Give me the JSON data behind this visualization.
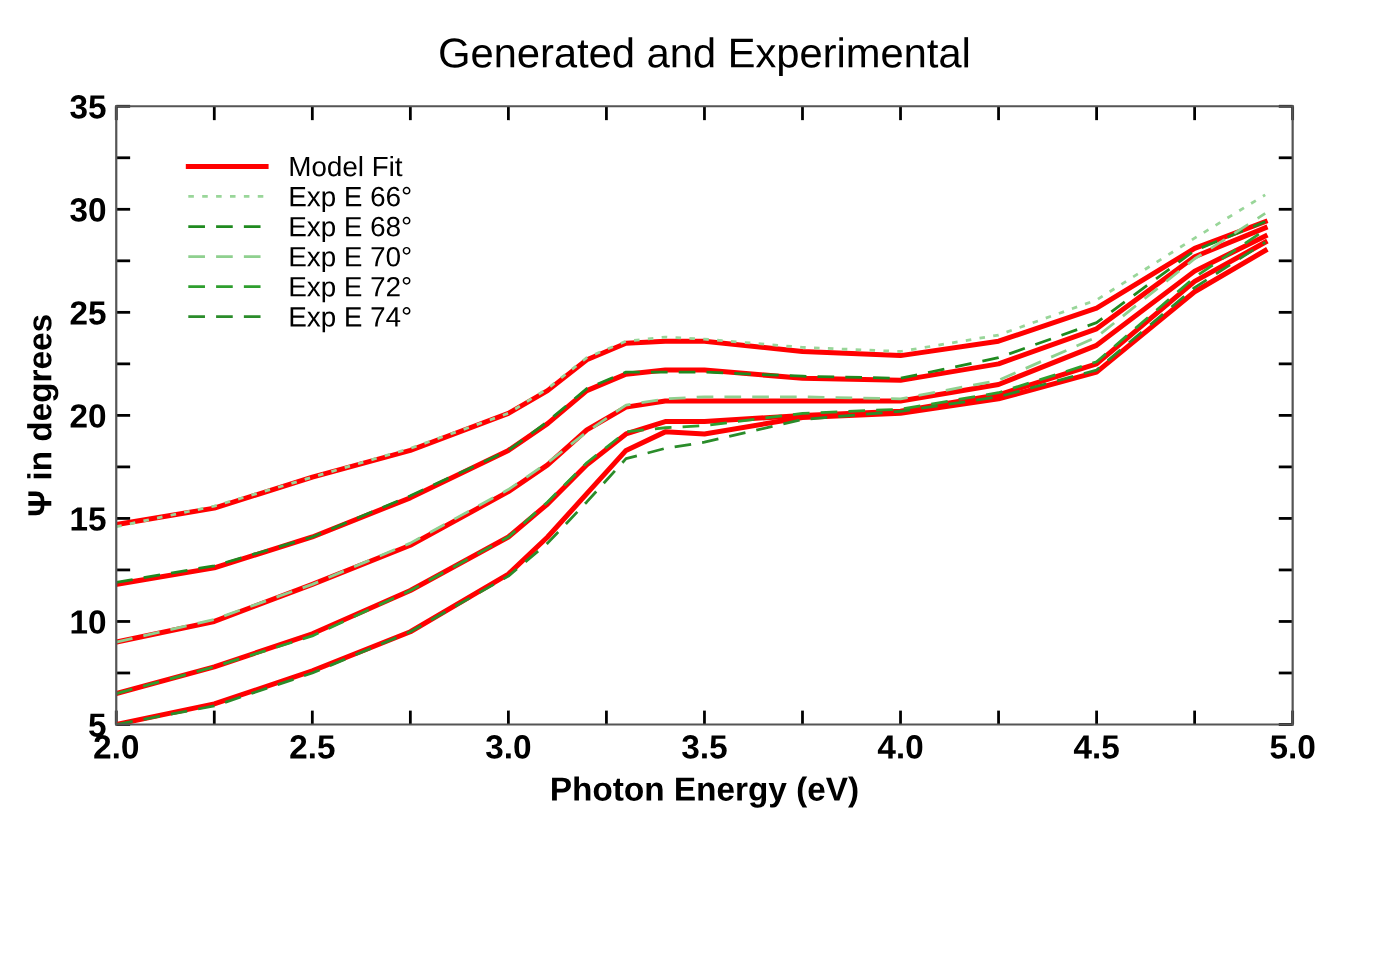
{
  "chart_data": {
    "type": "line",
    "title": "Generated and Experimental",
    "xlabel": "Photon Energy (eV)",
    "ylabel": "Ψ in degrees",
    "x": [
      2.0,
      2.25,
      2.5,
      2.75,
      3.0,
      3.1,
      3.2,
      3.3,
      3.4,
      3.5,
      3.75,
      4.0,
      4.25,
      4.5,
      4.75,
      4.93
    ],
    "xlim": [
      2.0,
      5.0
    ],
    "ylim": [
      5,
      35
    ],
    "xticks": [
      {
        "value": 2.0,
        "label": "2.0"
      },
      {
        "value": 2.25,
        "label": null
      },
      {
        "value": 2.5,
        "label": "2.5"
      },
      {
        "value": 2.75,
        "label": null
      },
      {
        "value": 3.0,
        "label": "3.0"
      },
      {
        "value": 3.25,
        "label": null
      },
      {
        "value": 3.5,
        "label": "3.5"
      },
      {
        "value": 3.75,
        "label": null
      },
      {
        "value": 4.0,
        "label": "4.0"
      },
      {
        "value": 4.25,
        "label": null
      },
      {
        "value": 4.5,
        "label": "4.5"
      },
      {
        "value": 4.75,
        "label": null
      },
      {
        "value": 5.0,
        "label": "5.0"
      }
    ],
    "yticks": [
      5,
      {
        "value": 7.5,
        "label": null
      },
      10,
      {
        "value": 12.5,
        "label": null
      },
      15,
      {
        "value": 17.5,
        "label": null
      },
      20,
      {
        "value": 22.5,
        "label": null
      },
      25,
      {
        "value": 27.5,
        "label": null
      },
      30,
      {
        "value": 32.5,
        "label": null
      },
      35
    ],
    "grid": false,
    "legend": "top left",
    "marker": "none",
    "series": [
      {
        "name": "Model Fit",
        "color": "#ff0000",
        "line_style": "solid",
        "values": [
          14.7,
          15.5,
          17.0,
          18.3,
          20.1,
          21.2,
          22.7,
          23.5,
          23.6,
          23.6,
          23.1,
          22.9,
          23.6,
          25.2,
          28.1,
          29.4
        ]
      },
      {
        "color": "#ff0000",
        "line_style": "solid",
        "values": [
          11.8,
          12.6,
          14.1,
          16.0,
          18.3,
          19.6,
          21.2,
          22.0,
          22.2,
          22.2,
          21.8,
          21.7,
          22.5,
          24.2,
          27.7,
          29.1
        ]
      },
      {
        "color": "#ff0000",
        "line_style": "solid",
        "values": [
          9.0,
          10.0,
          11.8,
          13.7,
          16.3,
          17.6,
          19.3,
          20.4,
          20.7,
          20.7,
          20.7,
          20.7,
          21.5,
          23.4,
          27.0,
          28.7
        ]
      },
      {
        "color": "#ff0000",
        "line_style": "solid",
        "values": [
          6.5,
          7.8,
          9.4,
          11.5,
          14.1,
          15.7,
          17.6,
          19.1,
          19.7,
          19.7,
          20.0,
          20.2,
          21.0,
          22.5,
          26.5,
          28.4
        ]
      },
      {
        "color": "#ff0000",
        "line_style": "solid",
        "values": [
          5.0,
          6.0,
          7.6,
          9.5,
          12.3,
          14.1,
          16.2,
          18.3,
          19.2,
          19.1,
          19.9,
          20.1,
          20.8,
          22.1,
          26.0,
          28.0
        ]
      },
      {
        "name": "Exp E 66°",
        "color": "#99d699",
        "line_style": "dotted",
        "values": [
          14.6,
          15.6,
          17.0,
          18.4,
          20.1,
          21.3,
          22.8,
          23.6,
          23.8,
          23.7,
          23.3,
          23.1,
          23.9,
          25.6,
          28.6,
          30.7
        ]
      },
      {
        "name": "Exp E 68°",
        "color": "#1f8a1f",
        "line_style": "dashed",
        "values": [
          11.9,
          12.7,
          14.1,
          16.1,
          18.3,
          19.7,
          21.3,
          22.1,
          22.1,
          22.1,
          21.9,
          21.8,
          22.8,
          24.5,
          28.0,
          29.4
        ]
      },
      {
        "name": "Exp E 70°",
        "color": "#8fd08f",
        "line_style": "dashed",
        "values": [
          9.0,
          10.1,
          11.8,
          13.8,
          16.4,
          17.7,
          19.2,
          20.5,
          20.8,
          20.9,
          20.9,
          20.8,
          21.7,
          23.8,
          27.6,
          29.8
        ]
      },
      {
        "name": "Exp E 72°",
        "color": "#2e9e2e",
        "line_style": "dashed",
        "values": [
          6.5,
          7.8,
          9.3,
          11.5,
          14.1,
          15.8,
          17.7,
          19.2,
          19.4,
          19.5,
          20.1,
          20.3,
          21.1,
          22.6,
          26.7,
          29.0
        ]
      },
      {
        "name": "Exp E 74°",
        "color": "#2a8c2a",
        "line_style": "dashed",
        "values": [
          5.0,
          5.9,
          7.5,
          9.5,
          12.2,
          13.8,
          15.8,
          17.9,
          18.4,
          18.7,
          19.8,
          20.2,
          20.9,
          22.2,
          26.2,
          28.4
        ]
      }
    ]
  }
}
